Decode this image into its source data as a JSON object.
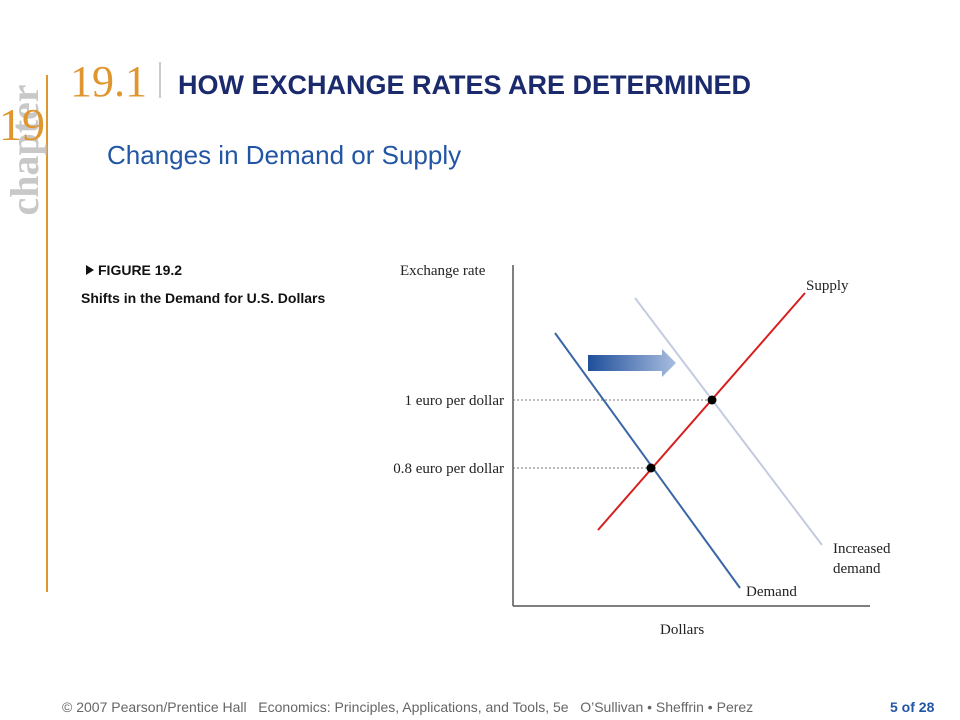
{
  "sidebar": {
    "chapter_label": "chapter",
    "chapter_number": "19"
  },
  "header": {
    "section_number": "19.1",
    "title": "HOW EXCHANGE RATES ARE DETERMINED",
    "subtitle": "Changes in Demand or Supply"
  },
  "figure": {
    "label": "FIGURE 19.2",
    "caption": "Shifts in the Demand for U.S. Dollars"
  },
  "diagram": {
    "y_axis_label": "Exchange rate",
    "x_axis_label": "Dollars",
    "levels": [
      "1 euro per dollar",
      "0.8 euro per dollar"
    ],
    "curves": {
      "supply": "Supply",
      "increased_demand": [
        "Increased",
        "demand"
      ],
      "demand": "Demand"
    }
  },
  "footer": {
    "copyright": "© 2007 Pearson/Prentice Hall   Economics: Principles, Applications, and Tools, 5e   O’Sullivan • Sheffrin • Perez",
    "page": "5 of 28"
  }
}
